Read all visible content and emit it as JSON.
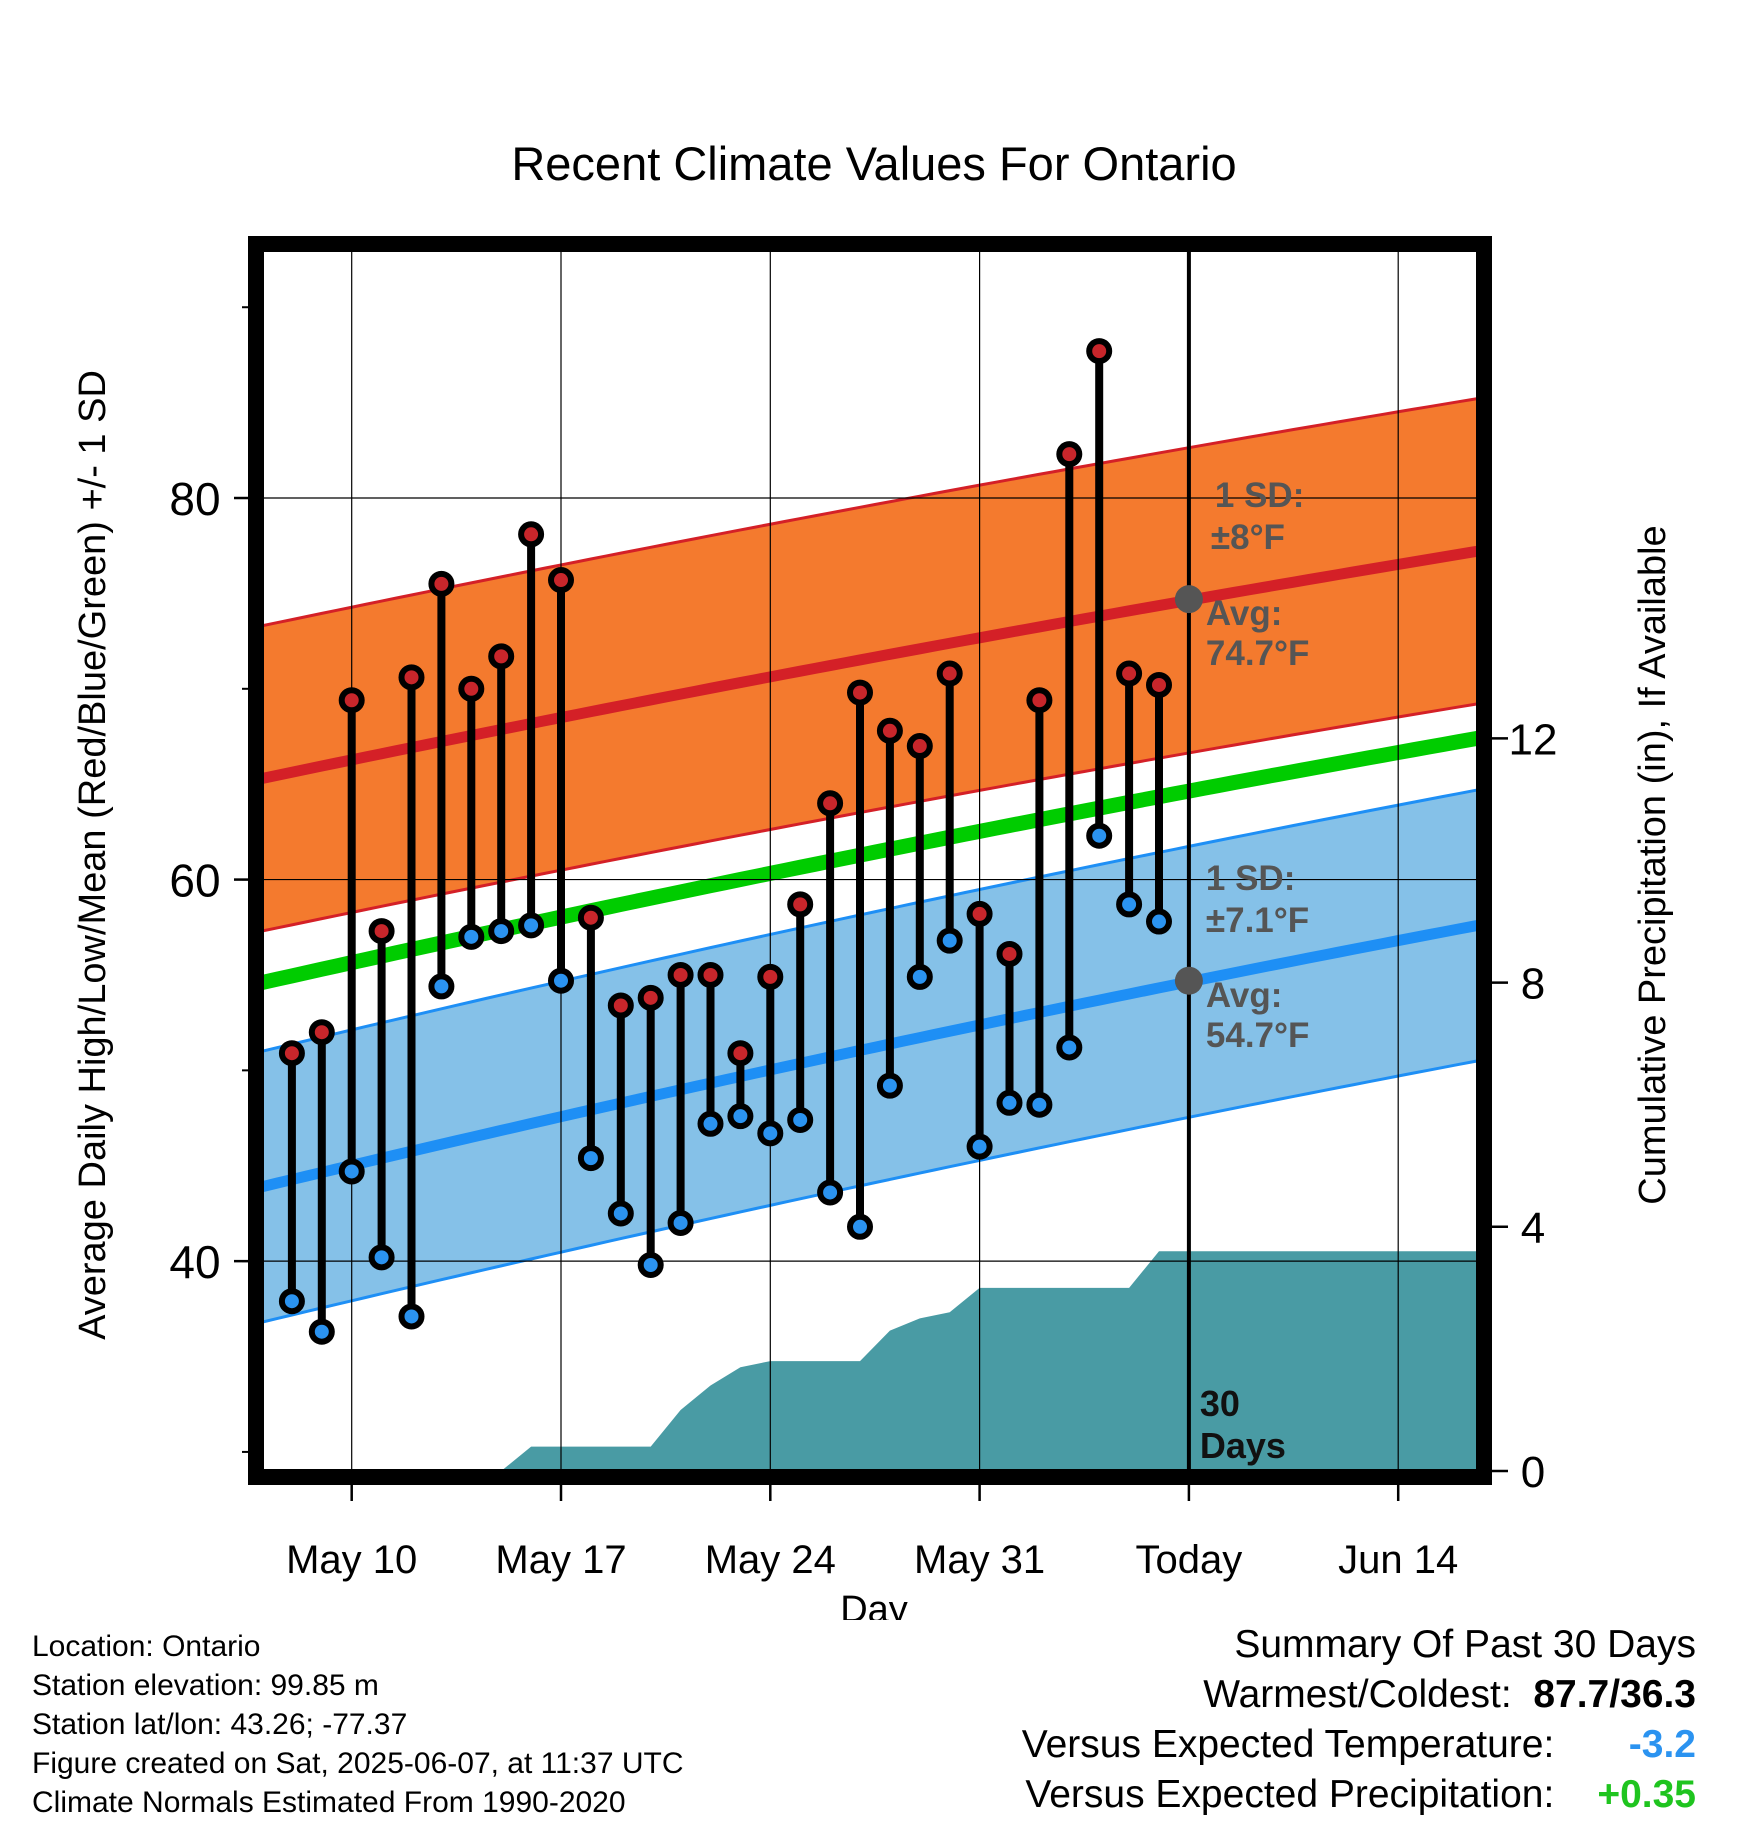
{
  "chart_data": {
    "type": "line",
    "title": "Recent Climate Values For Ontario",
    "xlabel": "Day",
    "ylabel": "Average Daily High/Low/Mean (Red/Blue/Green) +/- 1 SD",
    "ylabel_right": "Cumulative Precipitation (in), If Available",
    "ylim": [
      29,
      93
    ],
    "ylim_right": [
      0,
      20
    ],
    "x_range": [
      "May 7",
      "Jun 17"
    ],
    "y_ticks": [
      "40",
      "60",
      "80"
    ],
    "y_ticks_right": [
      "0",
      "4",
      "8",
      "12"
    ],
    "x_ticks": [
      "May 10",
      "May 17",
      "May 24",
      "May 31",
      "Today",
      "Jun 14"
    ],
    "grid": true,
    "today_label": "Today",
    "window_label": [
      "30",
      "Days"
    ],
    "daily": {
      "dates": [
        "May 8",
        "May 9",
        "May 10",
        "May 11",
        "May 12",
        "May 13",
        "May 14",
        "May 15",
        "May 16",
        "May 17",
        "May 18",
        "May 19",
        "May 20",
        "May 21",
        "May 22",
        "May 23",
        "May 24",
        "May 25",
        "May 26",
        "May 27",
        "May 28",
        "May 29",
        "May 30",
        "May 31",
        "Jun 1",
        "Jun 2",
        "Jun 3",
        "Jun 4",
        "Jun 5",
        "Jun 6",
        "Jun 7"
      ],
      "highs": [
        50.9,
        52.0,
        69.4,
        57.3,
        70.6,
        75.5,
        70.0,
        71.7,
        78.1,
        75.7,
        58.0,
        53.4,
        53.8,
        55.0,
        55.0,
        50.9,
        54.9,
        58.7,
        64.0,
        69.8,
        67.8,
        67.0,
        70.8,
        58.2,
        56.1,
        69.4,
        82.3,
        87.7,
        70.8,
        70.2,
        null
      ],
      "lows": [
        37.9,
        36.3,
        44.7,
        40.2,
        37.1,
        54.4,
        57.0,
        57.3,
        57.6,
        54.7,
        45.4,
        42.5,
        39.8,
        42.0,
        47.2,
        47.6,
        46.7,
        47.4,
        43.6,
        41.8,
        49.2,
        54.9,
        56.8,
        46.0,
        48.3,
        48.2,
        51.2,
        62.3,
        58.7,
        57.8,
        null
      ]
    },
    "normals": {
      "high_mean": [
        65.3,
        77.3
      ],
      "high_sd": 8,
      "low_mean": [
        43.9,
        57.7
      ],
      "low_sd": 7.1,
      "daily_mean": [
        54.6,
        67.5
      ]
    },
    "precip_cumulative": {
      "x": [
        "May 7",
        "May 15",
        "May 16",
        "May 17",
        "May 20",
        "May 21",
        "May 22",
        "May 23",
        "May 24",
        "May 26",
        "May 27",
        "May 28",
        "May 29",
        "May 30",
        "May 31",
        "Jun 1",
        "Jun 5",
        "Jun 6",
        "Jun 17"
      ],
      "values": [
        0,
        0,
        0.4,
        0.4,
        0.4,
        1.0,
        1.4,
        1.7,
        1.8,
        1.8,
        1.8,
        2.3,
        2.5,
        2.6,
        3.0,
        3.0,
        3.0,
        3.6,
        3.6
      ]
    },
    "annotations": {
      "high_sd_label": [
        "1 SD:",
        "±8°F"
      ],
      "high_avg_label": [
        "Avg:",
        "74.7°F"
      ],
      "low_sd_label": [
        "1 SD:",
        "±7.1°F"
      ],
      "low_avg_label": [
        "Avg:",
        "54.7°F"
      ],
      "today_high_avg": 74.7,
      "today_low_avg": 54.7
    },
    "colors": {
      "high_band": "#f47a2e",
      "high_line": "#d42027",
      "low_band": "#85c1e8",
      "low_line": "#1e8ff5",
      "mean_line": "#00cc00",
      "precip": "#499ba4",
      "high_marker": "#c8262b",
      "low_marker": "#2b93f0",
      "annotation": "#555555"
    }
  },
  "footer": {
    "location": "Location: Ontario",
    "elevation": "Station elevation: 99.85 m",
    "latlon": "Station lat/lon: 43.26; -77.37",
    "created": "Figure created on Sat, 2025-06-07, at 11:37 UTC",
    "normals": "Climate Normals Estimated From 1990-2020"
  },
  "summary": {
    "title": "Summary Of Past 30 Days",
    "warmest_label": "Warmest/Coldest:",
    "warmest_value": "87.7/36.3",
    "temp_label": "Versus Expected Temperature:",
    "temp_value": "-3.2",
    "temp_color": "#2b93f0",
    "precip_label": "Versus Expected Precipitation:",
    "precip_value": "+0.35",
    "precip_color": "#1fc41f"
  }
}
